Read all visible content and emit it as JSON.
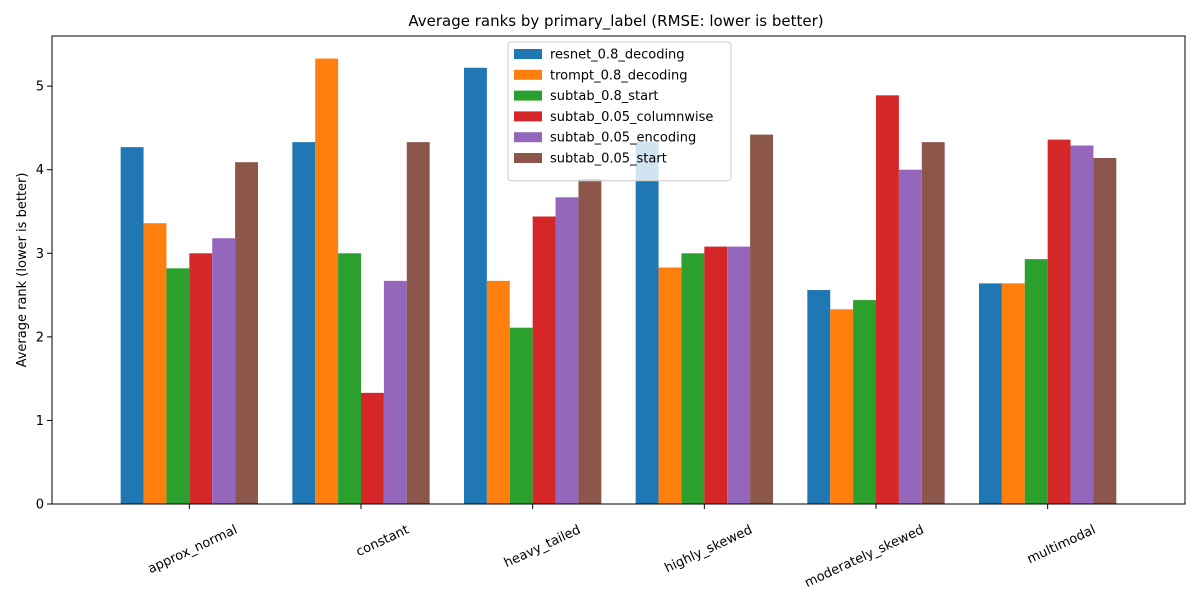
{
  "chart_data": {
    "type": "bar",
    "title": "Average ranks by primary_label (RMSE: lower is better)",
    "xlabel": "",
    "ylabel": "Average rank (lower is better)",
    "ylim": [
      0,
      5.6
    ],
    "yticks": [
      0,
      1,
      2,
      3,
      4,
      5
    ],
    "grid": false,
    "legend_position": "top-center",
    "categories": [
      "approx_normal",
      "constant",
      "heavy_tailed",
      "highly_skewed",
      "moderately_skewed",
      "multimodal"
    ],
    "series": [
      {
        "name": "resnet_0.8_decoding",
        "color": "#1f77b4",
        "values": [
          4.27,
          4.33,
          5.22,
          4.33,
          2.56,
          2.64
        ]
      },
      {
        "name": "trompt_0.8_decoding",
        "color": "#ff7f0e",
        "values": [
          3.36,
          5.33,
          2.67,
          2.83,
          2.33,
          2.64
        ]
      },
      {
        "name": "subtab_0.8_start",
        "color": "#2ca02c",
        "values": [
          2.82,
          3.0,
          2.11,
          3.0,
          2.44,
          2.93
        ]
      },
      {
        "name": "subtab_0.05_columnwise",
        "color": "#d62728",
        "values": [
          3.0,
          1.33,
          3.44,
          3.08,
          4.89,
          4.36
        ]
      },
      {
        "name": "subtab_0.05_encoding",
        "color": "#9467bd",
        "values": [
          3.18,
          2.67,
          3.67,
          3.08,
          4.0,
          4.29
        ]
      },
      {
        "name": "subtab_0.05_start",
        "color": "#8c564b",
        "values": [
          4.09,
          4.33,
          3.89,
          4.42,
          4.33,
          4.14
        ]
      }
    ]
  }
}
